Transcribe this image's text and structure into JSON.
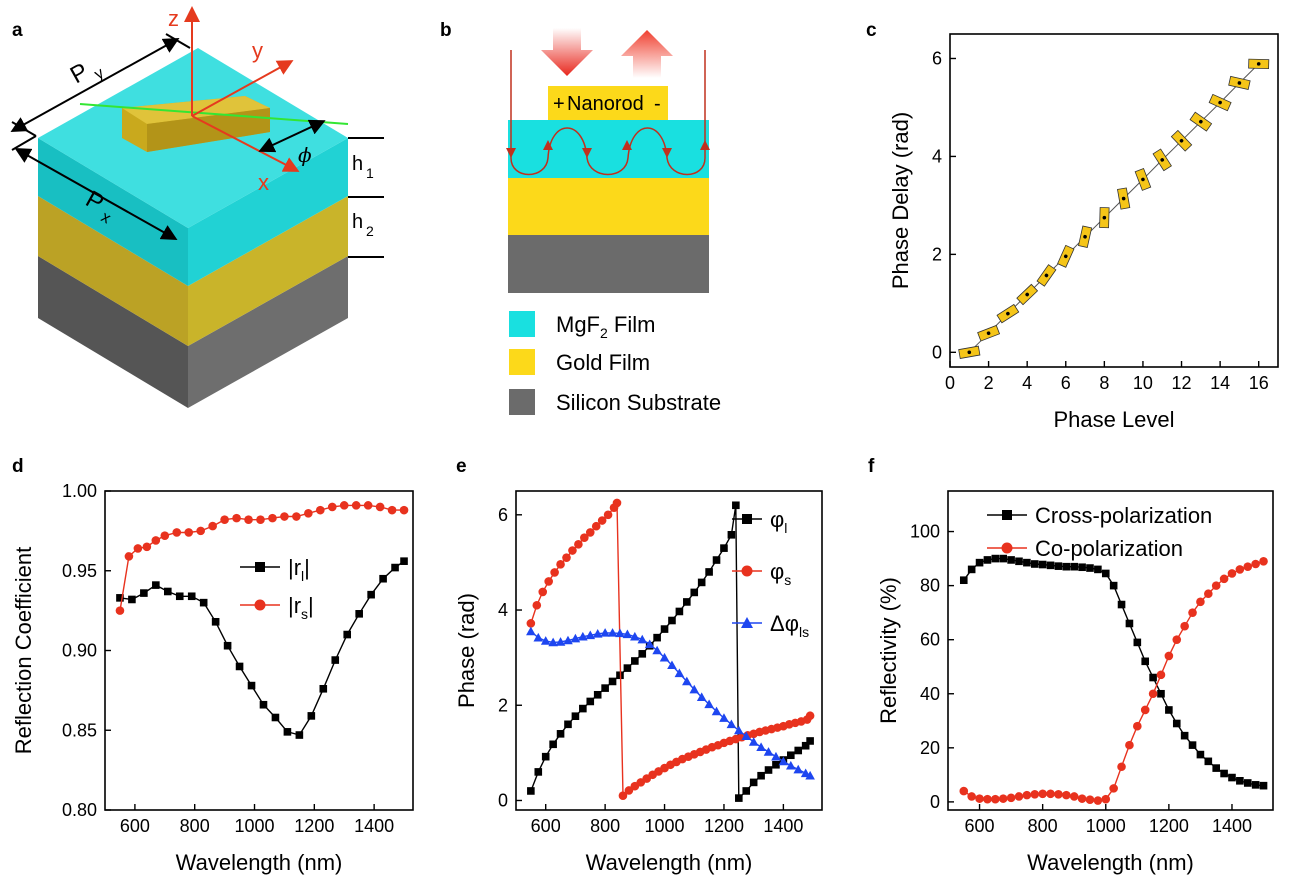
{
  "panels": {
    "a": {
      "label": "a",
      "axes": {
        "z": "z",
        "y": "y",
        "x": "x"
      },
      "dims": {
        "Py": "P",
        "Py_sub": "y",
        "Px": "P",
        "Px_sub": "x",
        "h1": "h",
        "h1_sub": "1",
        "h2": "h",
        "h2_sub": "2",
        "phi": "ϕ"
      },
      "colors": {
        "mgf2": "#19d3d5",
        "gold": "#c8b428",
        "silicon": "#5c5c5c",
        "rod": "#c8a81e",
        "axis": "#e53a1e",
        "line": "#33e633"
      }
    },
    "b": {
      "label": "b",
      "nanorod": "Nanorod",
      "plus": "+",
      "minus": "-",
      "legend": [
        {
          "sub_pre": "MgF",
          "sub": "2",
          "sub_post": " Film",
          "color": "#19e0e0"
        },
        {
          "text": "Gold Film",
          "color": "#fcd91a"
        },
        {
          "text": "Silicon Substrate",
          "color": "#6b6b6b"
        }
      ]
    },
    "c": {
      "label": "c"
    },
    "d": {
      "label": "d"
    },
    "e": {
      "label": "e"
    },
    "f": {
      "label": "f"
    }
  },
  "chart_data": [
    {
      "panel": "c",
      "type": "scatter",
      "xlabel": "Phase Level",
      "ylabel": "Phase Delay (rad)",
      "xlim": [
        0,
        17
      ],
      "ylim": [
        -0.3,
        6.5
      ],
      "xticks": [
        0,
        2,
        4,
        6,
        8,
        10,
        12,
        14,
        16
      ],
      "yticks": [
        0,
        2,
        4,
        6
      ],
      "x": [
        1,
        2,
        3,
        4,
        5,
        6,
        7,
        8,
        9,
        10,
        11,
        12,
        13,
        14,
        15,
        16
      ],
      "y": [
        0.0,
        0.39,
        0.79,
        1.18,
        1.57,
        1.96,
        2.36,
        2.75,
        3.14,
        3.53,
        3.93,
        4.32,
        4.71,
        5.1,
        5.5,
        5.89
      ],
      "rotations": [
        0,
        -22,
        -45,
        -67,
        -90,
        -112,
        -135,
        -157,
        -180,
        -202,
        -225,
        -247,
        -270,
        -292,
        -315,
        -337
      ],
      "marker_color": "#f5c518"
    },
    {
      "panel": "d",
      "type": "line",
      "xlabel": "Wavelength (nm)",
      "ylabel": "Reflection Coefficient",
      "xlim": [
        500,
        1530
      ],
      "ylim": [
        0.8,
        1.0
      ],
      "xticks": [
        600,
        800,
        1000,
        1200,
        1400
      ],
      "yticks": [
        0.8,
        0.85,
        0.9,
        0.95,
        1.0
      ],
      "ytick_labels": [
        "0.80",
        "0.85",
        "0.90",
        "0.95",
        "1.00"
      ],
      "legend": [
        {
          "name_pre": "|r",
          "name_sub": "l",
          "name_post": "|",
          "color": "#000000",
          "marker": "square"
        },
        {
          "name_pre": "|r",
          "name_sub": "s",
          "name_post": "|",
          "color": "#e8321e",
          "marker": "circle"
        }
      ],
      "series": [
        {
          "x": [
            550,
            590,
            630,
            670,
            710,
            750,
            790,
            830,
            870,
            910,
            950,
            990,
            1030,
            1070,
            1110,
            1150,
            1190,
            1230,
            1270,
            1310,
            1350,
            1390,
            1430,
            1470,
            1500
          ],
          "values": [
            0.933,
            0.932,
            0.936,
            0.941,
            0.937,
            0.934,
            0.934,
            0.93,
            0.918,
            0.903,
            0.89,
            0.878,
            0.866,
            0.858,
            0.849,
            0.847,
            0.859,
            0.876,
            0.894,
            0.91,
            0.923,
            0.935,
            0.945,
            0.952,
            0.956
          ]
        },
        {
          "x": [
            550,
            580,
            610,
            640,
            670,
            700,
            740,
            780,
            820,
            860,
            900,
            940,
            980,
            1020,
            1060,
            1100,
            1140,
            1180,
            1220,
            1260,
            1300,
            1340,
            1380,
            1420,
            1460,
            1500
          ],
          "values": [
            0.925,
            0.959,
            0.964,
            0.965,
            0.969,
            0.972,
            0.974,
            0.974,
            0.975,
            0.978,
            0.982,
            0.983,
            0.982,
            0.982,
            0.983,
            0.984,
            0.984,
            0.986,
            0.988,
            0.99,
            0.991,
            0.991,
            0.991,
            0.99,
            0.988,
            0.988
          ]
        }
      ]
    },
    {
      "panel": "e",
      "type": "line",
      "xlabel": "Wavelength (nm)",
      "ylabel": "Phase (rad)",
      "xlim": [
        500,
        1530
      ],
      "ylim": [
        -0.2,
        6.5
      ],
      "xticks": [
        600,
        800,
        1000,
        1200,
        1400
      ],
      "yticks": [
        0,
        2,
        4,
        6
      ],
      "legend": [
        {
          "name_pre": "φ",
          "name_sub": "l",
          "color": "#000000",
          "marker": "square"
        },
        {
          "name_pre": "φ",
          "name_sub": "s",
          "color": "#e8321e",
          "marker": "circle"
        },
        {
          "name_pre": "Δφ",
          "name_sub": "ls",
          "color": "#1e46f0",
          "marker": "triangle"
        }
      ],
      "series": [
        {
          "x": [
            550,
            575,
            600,
            625,
            650,
            675,
            700,
            725,
            750,
            775,
            800,
            825,
            850,
            875,
            900,
            925,
            950,
            975,
            1000,
            1025,
            1050,
            1075,
            1100,
            1125,
            1150,
            1175,
            1200,
            1225,
            1240,
            1250,
            1275,
            1300,
            1325,
            1350,
            1375,
            1400,
            1425,
            1450,
            1475,
            1490
          ],
          "values": [
            0.2,
            0.6,
            0.92,
            1.18,
            1.4,
            1.6,
            1.77,
            1.93,
            2.08,
            2.22,
            2.36,
            2.5,
            2.63,
            2.78,
            2.93,
            3.08,
            3.25,
            3.42,
            3.6,
            3.78,
            3.97,
            4.17,
            4.37,
            4.58,
            4.8,
            5.05,
            5.3,
            5.58,
            6.2,
            0.05,
            0.2,
            0.38,
            0.52,
            0.64,
            0.75,
            0.85,
            0.95,
            1.05,
            1.15,
            1.25
          ]
        },
        {
          "x": [
            550,
            570,
            590,
            610,
            630,
            650,
            670,
            690,
            710,
            730,
            750,
            770,
            790,
            810,
            830,
            840,
            860,
            880,
            900,
            920,
            940,
            960,
            980,
            1000,
            1020,
            1040,
            1060,
            1080,
            1100,
            1120,
            1140,
            1160,
            1180,
            1200,
            1220,
            1240,
            1260,
            1280,
            1300,
            1320,
            1340,
            1360,
            1380,
            1400,
            1420,
            1440,
            1460,
            1480,
            1490
          ],
          "values": [
            3.72,
            4.1,
            4.38,
            4.6,
            4.79,
            4.96,
            5.1,
            5.25,
            5.38,
            5.52,
            5.63,
            5.76,
            5.88,
            6.0,
            6.15,
            6.25,
            0.1,
            0.21,
            0.3,
            0.38,
            0.46,
            0.54,
            0.61,
            0.68,
            0.75,
            0.81,
            0.87,
            0.92,
            0.97,
            1.02,
            1.07,
            1.12,
            1.16,
            1.21,
            1.25,
            1.29,
            1.33,
            1.37,
            1.4,
            1.44,
            1.47,
            1.5,
            1.53,
            1.56,
            1.6,
            1.63,
            1.66,
            1.7,
            1.78
          ]
        },
        {
          "x": [
            550,
            575,
            600,
            625,
            650,
            675,
            700,
            725,
            750,
            775,
            800,
            825,
            850,
            875,
            900,
            925,
            950,
            975,
            1000,
            1025,
            1050,
            1075,
            1100,
            1125,
            1150,
            1175,
            1200,
            1225,
            1250,
            1275,
            1300,
            1325,
            1350,
            1375,
            1400,
            1425,
            1450,
            1475,
            1490
          ],
          "values": [
            3.55,
            3.42,
            3.35,
            3.32,
            3.33,
            3.36,
            3.4,
            3.44,
            3.47,
            3.5,
            3.52,
            3.52,
            3.51,
            3.49,
            3.44,
            3.38,
            3.28,
            3.15,
            3.0,
            2.84,
            2.67,
            2.5,
            2.33,
            2.17,
            2.02,
            1.87,
            1.73,
            1.6,
            1.47,
            1.35,
            1.23,
            1.12,
            1.02,
            0.92,
            0.82,
            0.73,
            0.65,
            0.57,
            0.52
          ]
        }
      ]
    },
    {
      "panel": "f",
      "type": "line",
      "xlabel": "Wavelength (nm)",
      "ylabel": "Reflectivity (%)",
      "xlim": [
        500,
        1530
      ],
      "ylim": [
        -3,
        115
      ],
      "xticks": [
        600,
        800,
        1000,
        1200,
        1400
      ],
      "yticks": [
        0,
        20,
        40,
        60,
        80,
        100
      ],
      "legend": [
        {
          "name": "Cross-polarization",
          "color": "#000000",
          "marker": "square"
        },
        {
          "name": "Co-polarization",
          "color": "#e8321e",
          "marker": "circle"
        }
      ],
      "series": [
        {
          "x": [
            550,
            575,
            600,
            625,
            650,
            675,
            700,
            725,
            750,
            775,
            800,
            825,
            850,
            875,
            900,
            925,
            950,
            975,
            1000,
            1025,
            1050,
            1075,
            1100,
            1125,
            1150,
            1175,
            1200,
            1225,
            1250,
            1275,
            1300,
            1325,
            1350,
            1375,
            1400,
            1425,
            1450,
            1475,
            1500
          ],
          "values": [
            82,
            86,
            88.5,
            89.5,
            90,
            90,
            89.5,
            89,
            88.5,
            88,
            87.8,
            87.5,
            87.2,
            87,
            87,
            86.8,
            86.5,
            86,
            84.5,
            80,
            73,
            66,
            59,
            52,
            46,
            40,
            34,
            29,
            24.5,
            21,
            17.5,
            15,
            12.5,
            10.5,
            9,
            7.8,
            7,
            6.3,
            6
          ]
        },
        {
          "x": [
            550,
            575,
            600,
            625,
            650,
            675,
            700,
            725,
            750,
            775,
            800,
            825,
            850,
            875,
            900,
            925,
            950,
            975,
            1000,
            1025,
            1050,
            1075,
            1100,
            1125,
            1150,
            1175,
            1200,
            1225,
            1250,
            1275,
            1300,
            1325,
            1350,
            1375,
            1400,
            1425,
            1450,
            1475,
            1500
          ],
          "values": [
            4,
            2,
            1.2,
            1,
            1,
            1.2,
            1.5,
            2,
            2.5,
            2.8,
            3,
            3,
            2.8,
            2.5,
            2,
            1.2,
            0.8,
            0.5,
            1,
            5,
            13,
            21,
            28,
            34,
            40,
            47,
            54,
            60,
            65,
            70,
            74,
            77,
            80,
            82.5,
            84.5,
            86,
            87,
            88,
            89
          ]
        }
      ]
    }
  ]
}
